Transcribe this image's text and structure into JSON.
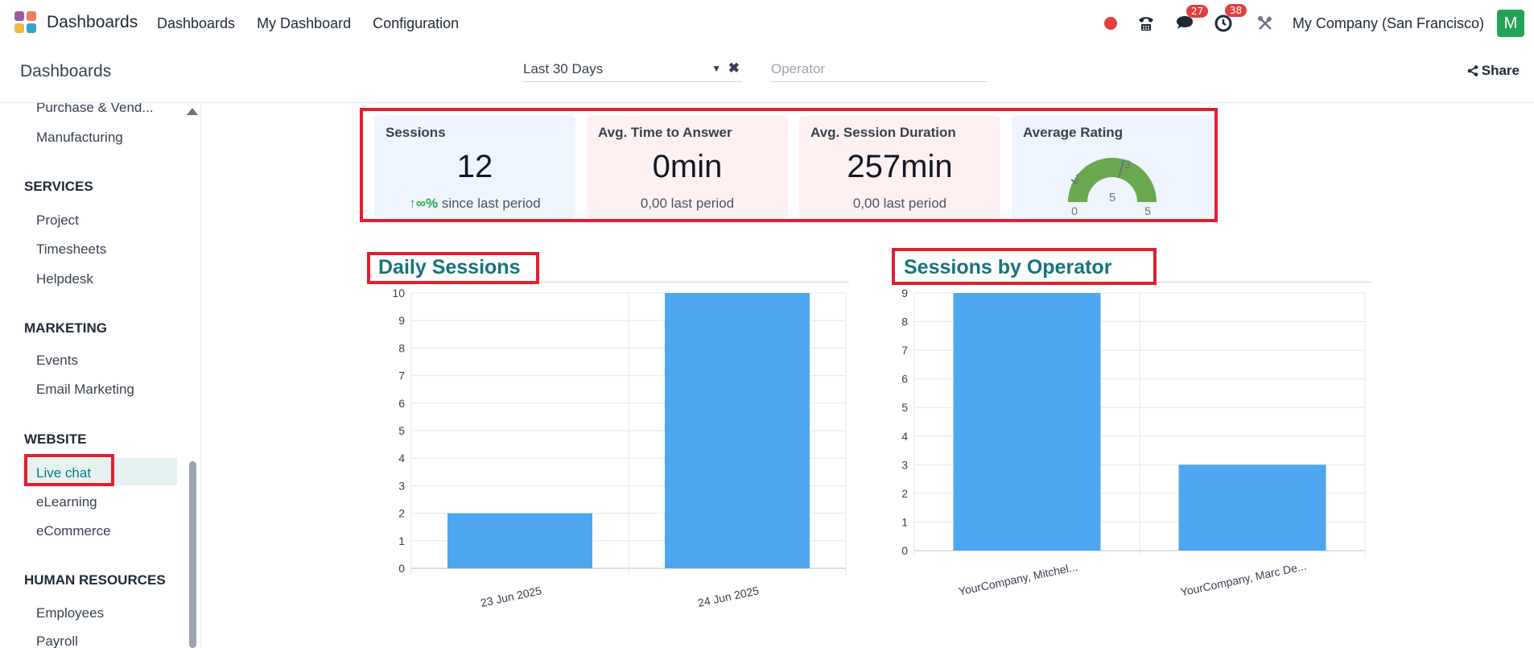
{
  "topbar": {
    "app_title": "Dashboards",
    "menu": [
      "Dashboards",
      "My Dashboard",
      "Configuration"
    ],
    "messages_badge": "27",
    "activities_badge": "38",
    "company": "My Company (San Francisco)",
    "avatar_letter": "M",
    "colors": {
      "record": "#e53e3e",
      "badge": "#e53e3e",
      "avatar": "#22a35a"
    }
  },
  "control_panel": {
    "title": "Dashboards",
    "period_filter": "Last 30 Days",
    "operator_placeholder": "Operator",
    "share_label": "Share"
  },
  "sidebar": {
    "items_top": [
      "Purchase & Vend...",
      "Manufacturing"
    ],
    "services": {
      "title": "SERVICES",
      "items": [
        "Project",
        "Timesheets",
        "Helpdesk"
      ]
    },
    "marketing": {
      "title": "MARKETING",
      "items": [
        "Events",
        "Email Marketing"
      ]
    },
    "website": {
      "title": "WEBSITE",
      "items": [
        "Live chat",
        "eLearning",
        "eCommerce"
      ],
      "active": "Live chat"
    },
    "human_resources": {
      "title": "HUMAN RESOURCES",
      "items": [
        "Employees",
        "Payroll"
      ]
    }
  },
  "kpis": [
    {
      "label": "Sessions",
      "value": "12",
      "trend": "∞%",
      "foot": "since last period"
    },
    {
      "label": "Avg. Time to Answer",
      "value": "0min",
      "foot": "0,00 last period"
    },
    {
      "label": "Avg. Session Duration",
      "value": "257min",
      "foot": "0,00 last period"
    },
    {
      "label": "Average Rating",
      "gauge_value": "3",
      "gauge_marker": "1",
      "gauge_center": "5",
      "gauge_min": "0",
      "gauge_max": "5"
    }
  ],
  "charts": {
    "daily_title": "Daily Sessions",
    "operator_title": "Sessions by Operator"
  },
  "chart_data": [
    {
      "type": "bar",
      "title": "Daily Sessions",
      "categories": [
        "23 Jun 2025",
        "24 Jun 2025"
      ],
      "values": [
        2,
        10
      ],
      "ylim": [
        0,
        10
      ],
      "yticks": [
        0,
        1,
        2,
        3,
        4,
        5,
        6,
        7,
        8,
        9,
        10
      ],
      "color": "#4ea6ef",
      "grid": true
    },
    {
      "type": "bar",
      "title": "Sessions by Operator",
      "categories": [
        "YourCompany, Mitchel...",
        "YourCompany, Marc De..."
      ],
      "values": [
        9,
        3
      ],
      "ylim": [
        0,
        9
      ],
      "yticks": [
        0,
        1,
        2,
        3,
        4,
        5,
        6,
        7,
        8,
        9
      ],
      "color": "#4ea6ef",
      "grid": true
    }
  ]
}
